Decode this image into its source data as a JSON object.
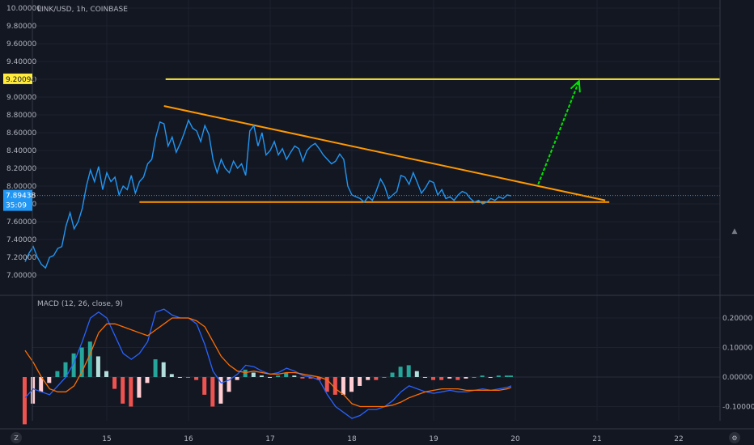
{
  "chart_data": [
    {
      "type": "line",
      "title": "LINK/USD, 1h, COINBASE",
      "ylim": [
        6.9,
        10.0
      ],
      "xlim": [
        14.0,
        22.5
      ],
      "y_ticks": [
        "7.00000",
        "7.20000",
        "7.40000",
        "7.60000",
        "7.80000",
        "8.00000",
        "8.20000",
        "8.40000",
        "8.60000",
        "8.80000",
        "9.00000",
        "9.20000",
        "9.40000",
        "9.60000",
        "9.80000",
        "10.00000"
      ],
      "x_ticks": [
        "15",
        "16",
        "17",
        "18",
        "19",
        "20",
        "21",
        "22"
      ],
      "last_price_label": "7.89438",
      "countdown_label": "35:09",
      "resistance_label": "9.20094",
      "colors": {
        "price": "#2196f3",
        "trend": "#ff9800",
        "resistance": "#ffeb3b",
        "arrow": "#00e600",
        "last_price_bg": "#2196f3",
        "resistance_bg": "#ffeb3b"
      },
      "price": {
        "x": [
          14.0,
          14.05,
          14.1,
          14.15,
          14.2,
          14.25,
          14.3,
          14.35,
          14.4,
          14.45,
          14.5,
          14.55,
          14.6,
          14.65,
          14.7,
          14.75,
          14.8,
          14.85,
          14.9,
          14.95,
          15.0,
          15.05,
          15.1,
          15.15,
          15.2,
          15.25,
          15.3,
          15.35,
          15.4,
          15.45,
          15.5,
          15.55,
          15.6,
          15.65,
          15.7,
          15.75,
          15.8,
          15.85,
          15.9,
          15.95,
          16.0,
          16.05,
          16.1,
          16.15,
          16.2,
          16.25,
          16.3,
          16.35,
          16.4,
          16.45,
          16.5,
          16.55,
          16.6,
          16.65,
          16.7,
          16.75,
          16.8,
          16.85,
          16.9,
          16.95,
          17.0,
          17.05,
          17.1,
          17.15,
          17.2,
          17.25,
          17.3,
          17.35,
          17.4,
          17.45,
          17.5,
          17.55,
          17.6,
          17.65,
          17.7,
          17.75,
          17.8,
          17.85,
          17.9,
          17.95,
          18.0,
          18.05,
          18.1,
          18.15,
          18.2,
          18.25,
          18.3,
          18.35,
          18.4,
          18.45,
          18.5,
          18.55,
          18.6,
          18.65,
          18.7,
          18.75,
          18.8,
          18.85,
          18.9,
          18.95,
          19.0,
          19.05,
          19.1,
          19.15,
          19.2,
          19.25,
          19.3,
          19.35,
          19.4,
          19.45,
          19.5,
          19.55,
          19.6,
          19.65,
          19.7,
          19.75,
          19.8,
          19.85,
          19.9,
          19.95
        ],
        "y": [
          7.15,
          7.25,
          7.32,
          7.2,
          7.12,
          7.08,
          7.2,
          7.22,
          7.3,
          7.32,
          7.55,
          7.7,
          7.52,
          7.6,
          7.75,
          8.0,
          8.18,
          8.05,
          8.22,
          7.96,
          8.15,
          8.05,
          8.1,
          7.9,
          8.0,
          7.96,
          8.12,
          7.92,
          8.05,
          8.1,
          8.25,
          8.3,
          8.55,
          8.72,
          8.7,
          8.45,
          8.55,
          8.38,
          8.48,
          8.6,
          8.74,
          8.65,
          8.62,
          8.5,
          8.68,
          8.58,
          8.3,
          8.15,
          8.3,
          8.2,
          8.15,
          8.28,
          8.2,
          8.25,
          8.12,
          8.62,
          8.68,
          8.45,
          8.6,
          8.35,
          8.4,
          8.5,
          8.35,
          8.42,
          8.3,
          8.38,
          8.45,
          8.42,
          8.28,
          8.4,
          8.45,
          8.48,
          8.42,
          8.35,
          8.3,
          8.25,
          8.28,
          8.36,
          8.3,
          8.0,
          7.9,
          7.88,
          7.86,
          7.82,
          7.88,
          7.84,
          7.95,
          8.08,
          8.0,
          7.86,
          7.9,
          7.94,
          8.12,
          8.1,
          8.02,
          8.15,
          8.04,
          7.92,
          7.98,
          8.06,
          8.04,
          7.9,
          7.96,
          7.86,
          7.88,
          7.84,
          7.9,
          7.94,
          7.92,
          7.86,
          7.82,
          7.84,
          7.8,
          7.82,
          7.86,
          7.84,
          7.88,
          7.86,
          7.9,
          7.89
        ]
      },
      "lines": [
        {
          "name": "trend-upper",
          "x": [
            15.7,
            21.1
          ],
          "y": [
            8.9,
            7.84
          ],
          "color": "#ff9800"
        },
        {
          "name": "trend-lower",
          "x": [
            15.4,
            21.15
          ],
          "y": [
            7.82,
            7.82
          ],
          "color": "#ff9800"
        },
        {
          "name": "resistance",
          "x": [
            15.72,
            22.5
          ],
          "y": [
            9.20094,
            9.20094
          ],
          "color": "#ffeb3b"
        },
        {
          "name": "projection-arrow",
          "x": [
            20.28,
            20.78
          ],
          "y": [
            8.02,
            9.18
          ],
          "color": "#00e600"
        }
      ]
    },
    {
      "type": "line",
      "title": "MACD (12, 26, close, 9)",
      "ylim": [
        -0.15,
        0.26
      ],
      "y_ticks": [
        "0.20000",
        "0.10000",
        "0.00000",
        "-0.10000"
      ],
      "colors": {
        "macd": "#2962ff",
        "signal": "#ff6d00",
        "hist_pos_strong": "#26a69a",
        "hist_pos_weak": "#b2dfdb",
        "hist_neg_strong": "#ef5350",
        "hist_neg_weak": "#ffcdd2"
      },
      "x": [
        14.0,
        14.1,
        14.2,
        14.3,
        14.4,
        14.5,
        14.6,
        14.7,
        14.8,
        14.9,
        15.0,
        15.1,
        15.2,
        15.3,
        15.4,
        15.5,
        15.6,
        15.7,
        15.8,
        15.9,
        16.0,
        16.1,
        16.2,
        16.3,
        16.4,
        16.5,
        16.6,
        16.7,
        16.8,
        16.9,
        17.0,
        17.1,
        17.2,
        17.3,
        17.4,
        17.5,
        17.6,
        17.7,
        17.8,
        17.9,
        18.0,
        18.1,
        18.2,
        18.3,
        18.4,
        18.5,
        18.6,
        18.7,
        18.8,
        18.9,
        19.0,
        19.1,
        19.2,
        19.3,
        19.4,
        19.5,
        19.6,
        19.7,
        19.8,
        19.9,
        19.95
      ],
      "macd": [
        -0.07,
        -0.04,
        -0.05,
        -0.06,
        -0.03,
        0.0,
        0.05,
        0.12,
        0.2,
        0.22,
        0.2,
        0.14,
        0.08,
        0.06,
        0.08,
        0.12,
        0.22,
        0.23,
        0.21,
        0.2,
        0.2,
        0.18,
        0.11,
        0.02,
        -0.02,
        -0.01,
        0.01,
        0.04,
        0.035,
        0.02,
        0.01,
        0.015,
        0.03,
        0.02,
        0.005,
        0.0,
        -0.01,
        -0.06,
        -0.1,
        -0.12,
        -0.14,
        -0.13,
        -0.11,
        -0.11,
        -0.1,
        -0.08,
        -0.05,
        -0.03,
        -0.04,
        -0.05,
        -0.055,
        -0.05,
        -0.045,
        -0.05,
        -0.05,
        -0.045,
        -0.04,
        -0.045,
        -0.04,
        -0.035,
        -0.03
      ],
      "signal": [
        0.09,
        0.05,
        0.0,
        -0.04,
        -0.05,
        -0.05,
        -0.03,
        0.02,
        0.08,
        0.15,
        0.18,
        0.18,
        0.17,
        0.16,
        0.15,
        0.14,
        0.16,
        0.18,
        0.2,
        0.2,
        0.2,
        0.19,
        0.17,
        0.12,
        0.07,
        0.04,
        0.02,
        0.015,
        0.02,
        0.015,
        0.01,
        0.01,
        0.015,
        0.015,
        0.01,
        0.005,
        0.0,
        -0.01,
        -0.04,
        -0.06,
        -0.09,
        -0.1,
        -0.1,
        -0.1,
        -0.1,
        -0.095,
        -0.085,
        -0.07,
        -0.06,
        -0.05,
        -0.045,
        -0.04,
        -0.04,
        -0.04,
        -0.045,
        -0.045,
        -0.045,
        -0.045,
        -0.045,
        -0.04,
        -0.035
      ]
    }
  ]
}
